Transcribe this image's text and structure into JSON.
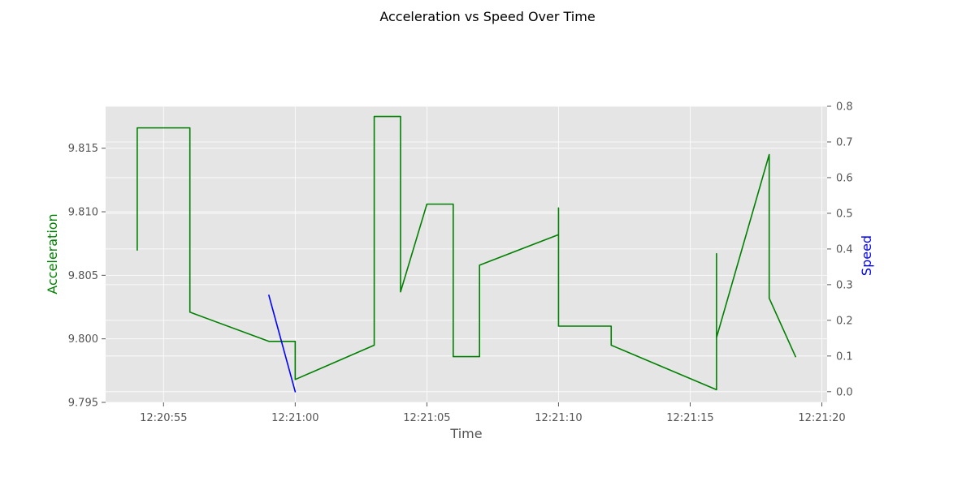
{
  "chart_data": {
    "type": "line",
    "title": "Acceleration vs Speed Over Time",
    "xlabel": "Time",
    "ylabel_left": "Acceleration",
    "ylabel_right": "Speed",
    "xlim": [
      "12:20:52.8",
      "12:21:20.2"
    ],
    "ylim_left": [
      9.795,
      9.8183
    ],
    "ylim_right": [
      -0.03,
      0.8
    ],
    "x_ticks": [
      "12:20:55",
      "12:21:00",
      "12:21:05",
      "12:21:10",
      "12:21:15",
      "12:21:20"
    ],
    "y_ticks_left": [
      "9.795",
      "9.800",
      "9.805",
      "9.810",
      "9.815"
    ],
    "y_ticks_right": [
      "0.0",
      "0.1",
      "0.2",
      "0.3",
      "0.4",
      "0.5",
      "0.6",
      "0.7",
      "0.8"
    ],
    "grid": true,
    "colors": {
      "acceleration": "#008000",
      "speed": "#0000ff",
      "plot_background": "#e5e5e5",
      "grid": "#ffffff"
    },
    "series": [
      {
        "axis": "left",
        "points": [
          [
            "12:20:54",
            9.807
          ],
          [
            "12:20:54",
            9.8166
          ],
          [
            "12:20:56",
            9.8166
          ],
          [
            "12:20:56",
            9.8021
          ],
          [
            "12:20:59",
            9.7998
          ],
          [
            "12:21:00",
            9.7998
          ],
          [
            "12:21:00",
            9.7968
          ],
          [
            "12:21:03",
            9.7995
          ],
          [
            "12:21:03",
            9.8175
          ],
          [
            "12:21:04",
            9.8175
          ],
          [
            "12:21:04",
            9.8037
          ],
          [
            "12:21:05",
            9.8106
          ],
          [
            "12:21:06",
            9.8106
          ],
          [
            "12:21:06",
            9.7986
          ],
          [
            "12:21:07",
            9.7986
          ],
          [
            "12:21:07",
            9.8058
          ],
          [
            "12:21:10",
            9.8082
          ],
          [
            "12:21:10",
            9.8103
          ],
          [
            "12:21:10",
            9.801
          ],
          [
            "12:21:12",
            9.801
          ],
          [
            "12:21:12",
            9.7995
          ],
          [
            "12:21:16",
            9.796
          ],
          [
            "12:21:16",
            9.8067
          ],
          [
            "12:21:16",
            9.8001
          ],
          [
            "12:21:18",
            9.8145
          ],
          [
            "12:21:18",
            9.8032
          ],
          [
            "12:21:19",
            9.7986
          ]
        ]
      },
      {
        "axis": "right",
        "points": [
          [
            "12:20:59",
            0.27
          ],
          [
            "12:21:00",
            0.0
          ]
        ]
      }
    ]
  }
}
